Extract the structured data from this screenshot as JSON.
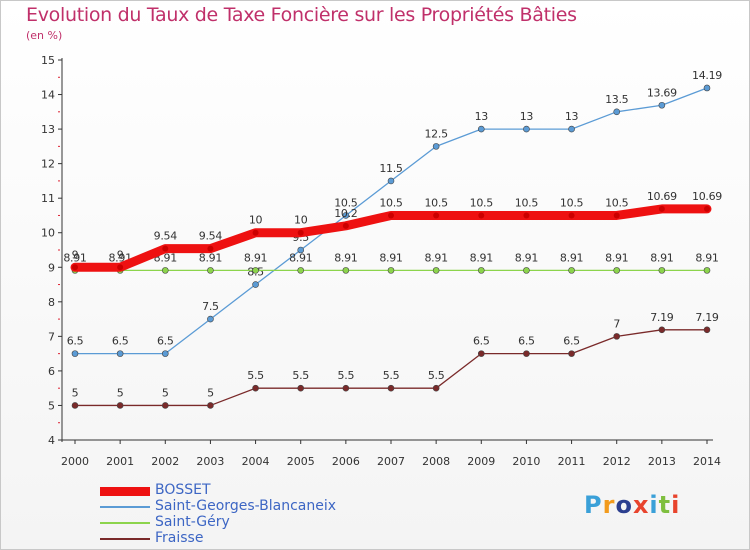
{
  "header": {
    "title": "Evolution du Taux de Taxe Foncière sur les Propriétés Bâties",
    "unit": "(en %)"
  },
  "brand": {
    "name": "Proxiti",
    "letters": [
      "P",
      "r",
      "o",
      "x",
      "i",
      "t",
      "i"
    ],
    "colors": [
      "#3aa0d8",
      "#f29b1d",
      "#2c3f8f",
      "#e8442d",
      "#3aa0d8",
      "#7fbf3f",
      "#e8442d"
    ]
  },
  "chart_data": {
    "type": "line",
    "title": "Evolution du Taux de Taxe Foncière sur les Propriétés Bâties",
    "ylabel": "(en %)",
    "xlabel": "",
    "x": [
      "2000",
      "2001",
      "2002",
      "2003",
      "2004",
      "2005",
      "2006",
      "2007",
      "2008",
      "2009",
      "2010",
      "2011",
      "2012",
      "2013",
      "2014"
    ],
    "ylim": [
      4,
      15
    ],
    "yticks": [
      "4",
      "5",
      "6",
      "7",
      "8",
      "9",
      "10",
      "11",
      "12",
      "13",
      "14",
      "15"
    ],
    "grid": false,
    "legend": "bottom-left",
    "series": [
      {
        "name": "Saint-Georges-Blancaneix",
        "color": "#5b9bd5",
        "emphasis": false,
        "values": [
          6.5,
          6.5,
          6.5,
          7.5,
          8.5,
          9.5,
          10.5,
          11.5,
          12.5,
          13,
          13,
          13,
          13.5,
          13.69,
          14.19
        ],
        "labels": [
          "6.5",
          "6.5",
          "6.5",
          "7.5",
          "8.5",
          "9.5",
          "10.5",
          "11.5",
          "12.5",
          "13",
          "13",
          "13",
          "13.5",
          "13.69",
          "14.19"
        ]
      },
      {
        "name": "Saint-Géry",
        "color": "#8cd44c",
        "emphasis": false,
        "values": [
          8.91,
          8.91,
          8.91,
          8.91,
          8.91,
          8.91,
          8.91,
          8.91,
          8.91,
          8.91,
          8.91,
          8.91,
          8.91,
          8.91,
          8.91
        ],
        "labels": [
          "8.91",
          "8.91",
          "8.91",
          "8.91",
          "8.91",
          "8.91",
          "8.91",
          "8.91",
          "8.91",
          "8.91",
          "8.91",
          "8.91",
          "8.91",
          "8.91",
          "8.91"
        ]
      },
      {
        "name": "Fraisse",
        "color": "#7a2a2a",
        "emphasis": false,
        "values": [
          5,
          5,
          5,
          5,
          5.5,
          5.5,
          5.5,
          5.5,
          5.5,
          6.5,
          6.5,
          6.5,
          7,
          7.19,
          7.19
        ],
        "labels": [
          "5",
          "5",
          "5",
          "5",
          "5.5",
          "5.5",
          "5.5",
          "5.5",
          "5.5",
          "6.5",
          "6.5",
          "6.5",
          "7",
          "7.19",
          "7.19"
        ]
      },
      {
        "name": "BOSSET",
        "color": "#ee1111",
        "emphasis": true,
        "values": [
          9,
          9,
          9.54,
          9.54,
          10,
          10,
          10.2,
          10.5,
          10.5,
          10.5,
          10.5,
          10.5,
          10.5,
          10.69,
          10.69
        ],
        "labels": [
          "9",
          "9",
          "9.54",
          "9.54",
          "10",
          "10",
          "10.2",
          "10.5",
          "10.5",
          "10.5",
          "10.5",
          "10.5",
          "10.5",
          "10.69",
          "10.69"
        ]
      }
    ],
    "legend_order": [
      "BOSSET",
      "Saint-Georges-Blancaneix",
      "Saint-Géry",
      "Fraisse"
    ]
  }
}
